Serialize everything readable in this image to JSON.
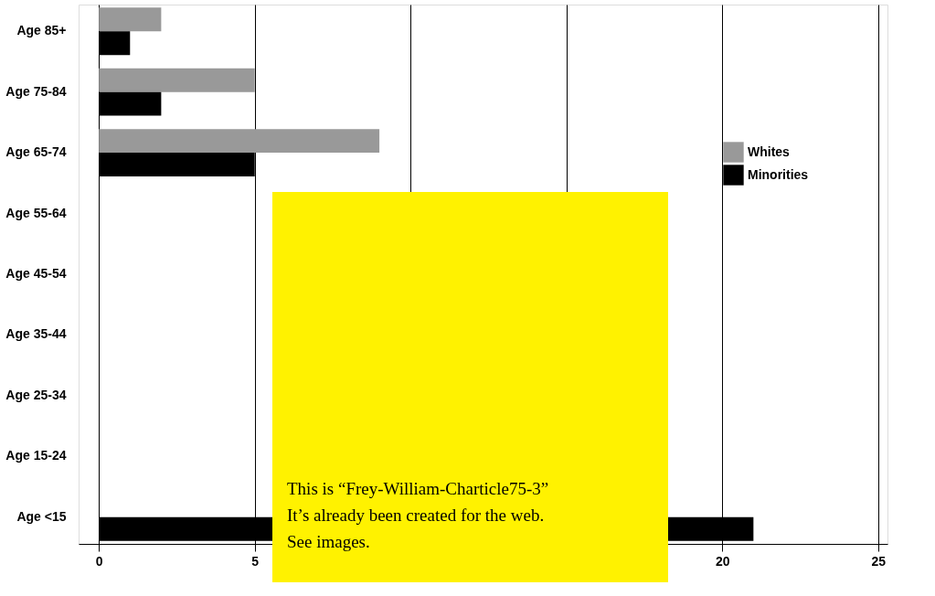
{
  "chart_data": {
    "type": "bar",
    "orientation": "horizontal",
    "categories": [
      "Age 85+",
      "Age 75-84",
      "Age 65-74",
      "Age 55-64",
      "Age 45-54",
      "Age 35-44",
      "Age 25-34",
      "Age 15-24",
      "Age <15"
    ],
    "series": [
      {
        "name": "Whites",
        "color": "#999999",
        "values": [
          2,
          5,
          9,
          null,
          null,
          null,
          null,
          null,
          null
        ]
      },
      {
        "name": "Minorities",
        "color": "#000000",
        "values": [
          1,
          2,
          5,
          null,
          null,
          null,
          null,
          null,
          21
        ]
      }
    ],
    "xlim": [
      -0.65,
      25.3
    ],
    "xticks": [
      0,
      5,
      {
        "value": 10,
        "label": null
      },
      {
        "value": 15,
        "label": null
      },
      20,
      25
    ],
    "grid": "x",
    "legend": "right",
    "annotations": [
      "This is “Frey-William-Charticle75-3”",
      "It’s already been created for the web.",
      "See images."
    ]
  }
}
